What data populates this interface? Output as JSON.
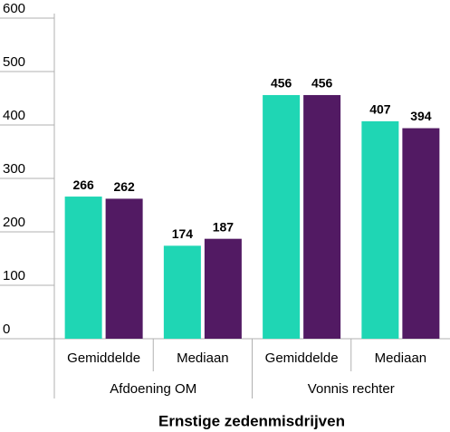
{
  "chart_data": {
    "type": "bar",
    "x_label": "Ernstige zedenmisdrijven",
    "categories": [
      "Gemiddelde",
      "Mediaan",
      "Gemiddelde",
      "Mediaan"
    ],
    "groups": [
      {
        "label": "Afdoening OM",
        "span": 2
      },
      {
        "label": "Vonnis rechter",
        "span": 2
      }
    ],
    "series": [
      {
        "color": "#1fd6b4",
        "values": [
          266,
          174,
          456,
          407
        ]
      },
      {
        "color": "#521a63",
        "values": [
          262,
          187,
          456,
          394
        ]
      }
    ],
    "ylim": [
      0,
      600
    ],
    "yticks": [
      0,
      100,
      200,
      300,
      400,
      500,
      600
    ],
    "grid": false
  }
}
